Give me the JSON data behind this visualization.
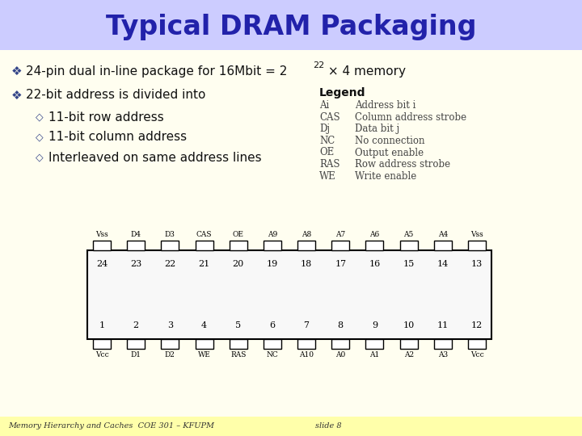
{
  "title": "Typical DRAM Packaging",
  "title_color": "#2222aa",
  "title_bg": "#ccccff",
  "bg_color": "#fffef0",
  "footer_bg": "#ffffaa",
  "bullet1_pre": "24-pin dual in-line package for 16Mbit = 2",
  "bullet1_exp": "22",
  "bullet1_post": " × 4 memory",
  "bullet2": "22-bit address is divided into",
  "sub1": "11-bit row address",
  "sub2": "11-bit column address",
  "sub3": "Interleaved on same address lines",
  "legend_title": "Legend",
  "legend_items": [
    [
      "Ai",
      "Address bit i"
    ],
    [
      "CAS",
      "Column address strobe"
    ],
    [
      "Dj",
      "Data bit j"
    ],
    [
      "NC",
      "No connection"
    ],
    [
      "OE",
      "Output enable"
    ],
    [
      "RAS",
      "Row address strobe"
    ],
    [
      "WE",
      "Write enable"
    ]
  ],
  "top_pins": [
    "Vss",
    "D4",
    "D3",
    "CAS",
    "OE",
    "A9",
    "A8",
    "A7",
    "A6",
    "A5",
    "A4",
    "Vss"
  ],
  "top_nums": [
    "24",
    "23",
    "22",
    "21",
    "20",
    "19",
    "18",
    "17",
    "16",
    "15",
    "14",
    "13"
  ],
  "bot_nums": [
    "1",
    "2",
    "3",
    "4",
    "5",
    "6",
    "7",
    "8",
    "9",
    "10",
    "11",
    "12"
  ],
  "bot_pins": [
    "Vcc",
    "D1",
    "D2",
    "WE",
    "RAS",
    "NC",
    "A10",
    "A0",
    "A1",
    "A2",
    "A3",
    "Vcc"
  ],
  "footer_left": "Memory Hierarchy and Caches  COE 301 – KFUPM",
  "footer_right": "slide 8"
}
